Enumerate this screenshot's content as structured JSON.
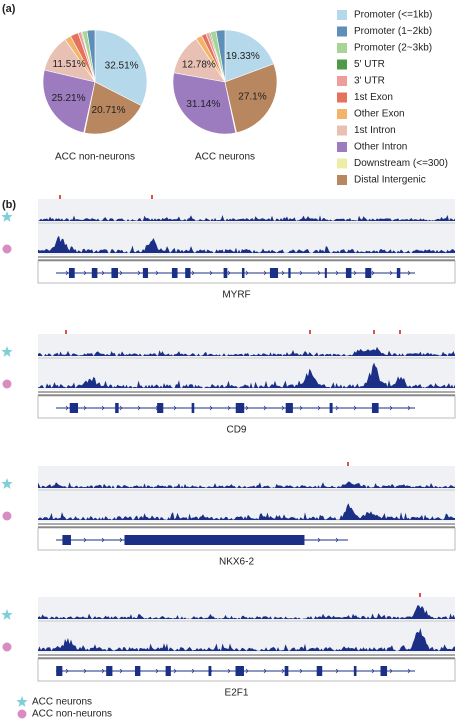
{
  "panel_labels": [
    "(a)",
    "(b)"
  ],
  "chart_data": [
    {
      "type": "pie",
      "title": "ACC non-neurons",
      "categories": [
        "Promoter (<=1kb)",
        "Promoter (1~2kb)",
        "Promoter (2~3kb)",
        "5' UTR",
        "3' UTR",
        "1st Exon",
        "Other Exon",
        "1st Intron",
        "Other Intron",
        "Downstream (<=300)",
        "Distal Intergenic"
      ],
      "colors": [
        "#b5d8ea",
        "#5f8fb8",
        "#a6d597",
        "#4f9a45",
        "#ef9d9b",
        "#e4725c",
        "#f3b46a",
        "#e8c0b4",
        "#9c7cbf",
        "#eeeca6",
        "#b8865f"
      ],
      "values": [
        32.51,
        2.5,
        1.5,
        0.3,
        1.0,
        2.5,
        2.0,
        11.51,
        25.21,
        0.26,
        20.71
      ],
      "value_labels": [
        "32.51%",
        null,
        null,
        null,
        null,
        null,
        null,
        "11.51%",
        "25.21%",
        null,
        "20.71%"
      ]
    },
    {
      "type": "pie",
      "title": "ACC neurons",
      "categories": [
        "Promoter (<=1kb)",
        "Promoter (1~2kb)",
        "Promoter (2~3kb)",
        "5' UTR",
        "3' UTR",
        "1st Exon",
        "Other Exon",
        "1st Intron",
        "Other Intron",
        "Downstream (<=300)",
        "Distal Intergenic"
      ],
      "colors": [
        "#b5d8ea",
        "#5f8fb8",
        "#a6d597",
        "#4f9a45",
        "#ef9d9b",
        "#e4725c",
        "#f3b46a",
        "#e8c0b4",
        "#9c7cbf",
        "#eeeca6",
        "#b8865f"
      ],
      "values": [
        19.33,
        2.8,
        1.8,
        0.4,
        1.0,
        1.5,
        1.9,
        12.78,
        31.14,
        0.25,
        27.1
      ],
      "value_labels": [
        "19.33%",
        null,
        null,
        null,
        null,
        null,
        null,
        "12.78%",
        "31.14%",
        null,
        "27.1%"
      ]
    }
  ],
  "tracks": {
    "genes": [
      "MYRF",
      "CD9",
      "NKX6-2",
      "E2F1"
    ],
    "legend": [
      "ACC neurons",
      "ACC non-neurons"
    ]
  }
}
